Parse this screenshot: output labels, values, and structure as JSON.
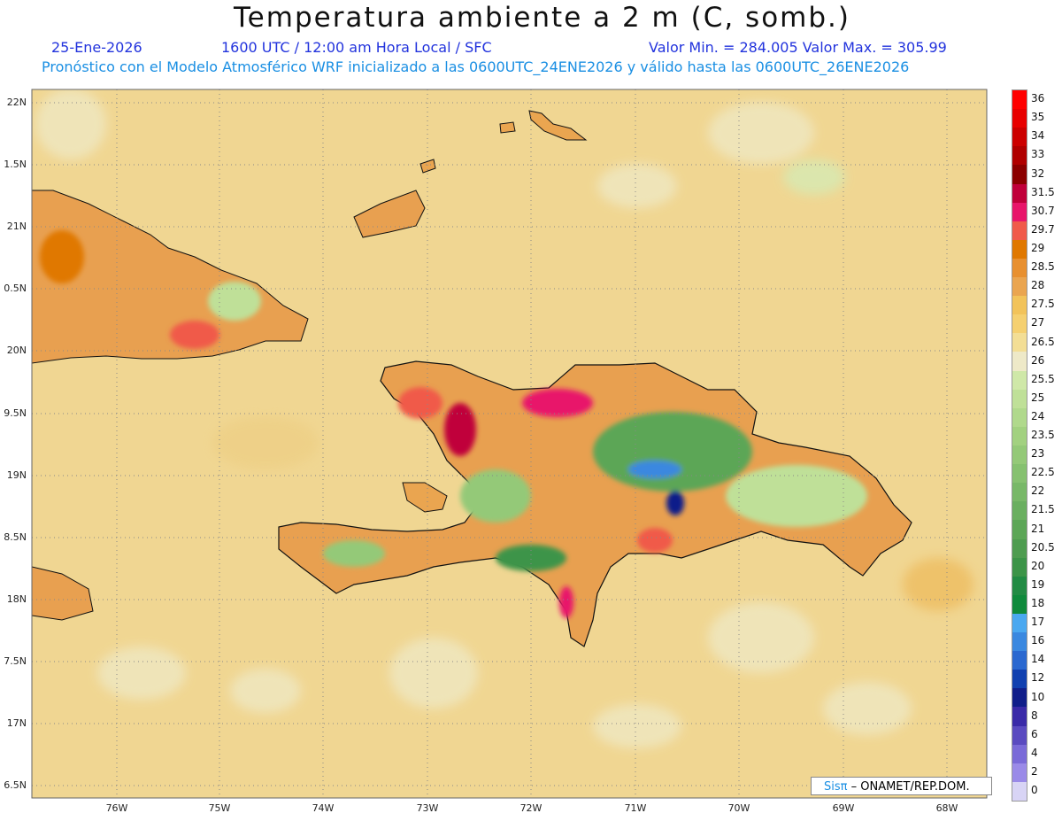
{
  "header": {
    "title": "Temperatura ambiente a 2 m (C, somb.)",
    "date": "25-Ene-2026",
    "time": "1600 UTC / 12:00 am Hora Local / SFC",
    "values": "Valor Min. = 284.005  Valor Max. = 305.99",
    "model": "Pronóstico con el Modelo Atmosférico WRF inicializado a las 0600UTC_24ENE2026 y válido hasta las  0600UTC_26ENE2026"
  },
  "map": {
    "lat_ticks": [
      "22N",
      "1.5N",
      "21N",
      "0.5N",
      "20N",
      "9.5N",
      "19N",
      "8.5N",
      "18N",
      "7.5N",
      "17N",
      "6.5N"
    ],
    "lon_ticks": [
      "76W",
      "75W",
      "74W",
      "73W",
      "72W",
      "71W",
      "70W",
      "69W",
      "68W"
    ],
    "background_color": "#f0d692"
  },
  "legend": {
    "labels": [
      "36",
      "35",
      "34",
      "33",
      "32",
      "31.5",
      "30.7",
      "29.7",
      "29",
      "28.5",
      "28",
      "27.5",
      "27",
      "26.5",
      "26",
      "25.5",
      "25",
      "24",
      "23.5",
      "23",
      "22.5",
      "22",
      "21.5",
      "21",
      "20.5",
      "20",
      "19",
      "18",
      "17",
      "16",
      "14",
      "12",
      "10",
      "8",
      "6",
      "4",
      "2",
      "0"
    ],
    "colors": [
      "#ff0000",
      "#e80000",
      "#cc0000",
      "#b00000",
      "#8b0000",
      "#c0003a",
      "#e8156a",
      "#f05a4a",
      "#e07800",
      "#e89030",
      "#eaa550",
      "#f2c35a",
      "#f5d070",
      "#f3de95",
      "#eee9c8",
      "#cfe8a8",
      "#bfe098",
      "#b0d98c",
      "#a2d180",
      "#94c978",
      "#86c170",
      "#78b868",
      "#6aaf60",
      "#5ca657",
      "#4e9c50",
      "#3c9448",
      "#228b44",
      "#0f8a3c",
      "#4aa8f0",
      "#3a88e0",
      "#2a68d0",
      "#1040b0",
      "#101e8a",
      "#3a2aa8",
      "#5a4ac0",
      "#7a6ad8",
      "#9a8ae8",
      "#d8d4f5"
    ]
  },
  "credit": {
    "prefix": "Sis",
    "pi": "π",
    "suffix": " – ONAMET/REP.DOM."
  }
}
